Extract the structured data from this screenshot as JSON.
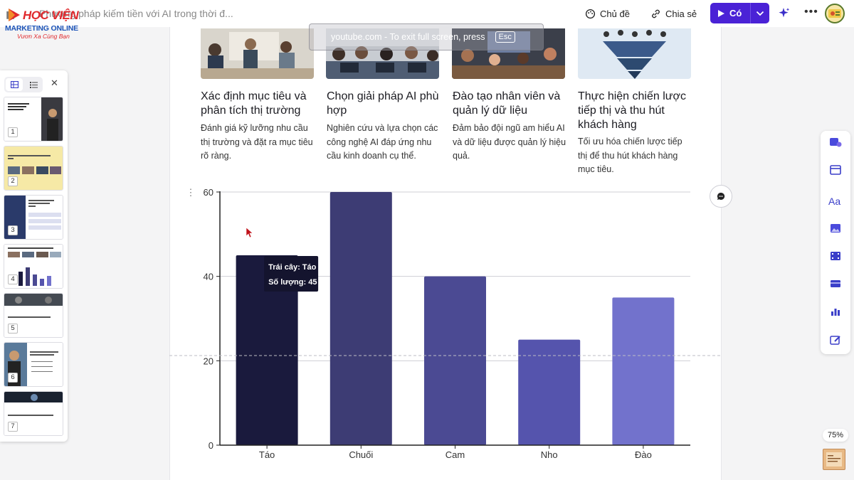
{
  "app": {
    "logo": {
      "line1": "HỌC VIỆN",
      "line2": "MARKETING ONLINE",
      "tagline": "Vươn Xa Cùng Bạn"
    },
    "doc_title": "Phương pháp kiếm tiền với AI trong thời đ...",
    "toolbar": {
      "theme_label": "Chủ đề",
      "share_label": "Chia sẻ",
      "present_label": "Có"
    },
    "zoom": "75%"
  },
  "overlay_banner": {
    "text": "youtube.com  -  To exit full screen, press",
    "esc": "Esc"
  },
  "cards": [
    {
      "title": "Xác định mục tiêu và phân tích thị trường",
      "desc": "Đánh giá kỹ lưỡng nhu cầu thị trường và đặt ra mục tiêu rõ ràng."
    },
    {
      "title": "Chọn giải pháp AI phù hợp",
      "desc": "Nghiên cứu và lựa chọn các công nghệ AI đáp ứng nhu cầu kinh doanh cụ thể."
    },
    {
      "title": "Đào tạo nhân viên và quản lý dữ liệu",
      "desc": "Đảm bảo đội ngũ am hiểu AI và dữ liệu được quản lý hiệu quả."
    },
    {
      "title": "Thực hiện chiến lược tiếp thị và thu hút khách hàng",
      "desc": "Tối ưu hóa chiến lược tiếp thị để thu hút khách hàng mục tiêu."
    }
  ],
  "chart_data": {
    "type": "bar",
    "categories": [
      "Táo",
      "Chuối",
      "Cam",
      "Nho",
      "Đào"
    ],
    "values": [
      45,
      60,
      40,
      25,
      35
    ],
    "colors": [
      "#1a1a3d",
      "#3d3c74",
      "#4b4a93",
      "#5554ad",
      "#7272cc"
    ],
    "ylim": [
      0,
      60
    ],
    "yticks": [
      "0",
      "20",
      "40",
      "60"
    ],
    "grid": true,
    "tooltip": {
      "line1": "Trái cây: Táo",
      "line2": "Số lượng: 45"
    }
  },
  "thumbnails": [
    {
      "num": "1"
    },
    {
      "num": "2"
    },
    {
      "num": "3"
    },
    {
      "num": "4"
    },
    {
      "num": "5"
    },
    {
      "num": "6"
    },
    {
      "num": "7"
    }
  ]
}
